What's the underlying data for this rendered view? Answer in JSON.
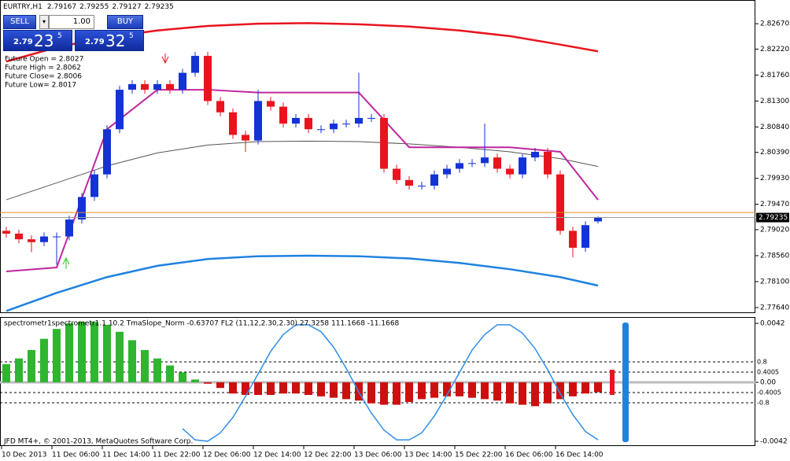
{
  "chart_data": [
    {
      "type": "candlestick",
      "title": "EURTRY,H1",
      "categories": [
        "10 Dec 2013",
        null,
        null,
        null,
        "11 Dec 06:00",
        null,
        null,
        null,
        "11 Dec 14:00",
        null,
        null,
        null,
        "11 Dec 22:00",
        null,
        null,
        null,
        "12 Dec 06:00",
        null,
        null,
        null,
        "12 Dec 14:00",
        null,
        null,
        null,
        "12 Dec 22:00",
        null,
        null,
        null,
        "13 Dec 06:00",
        null,
        null,
        null,
        "13 Dec 14:00",
        null,
        null,
        null,
        "15 Dec 22:00",
        null,
        null,
        null,
        "16 Dec 06:00",
        null,
        null,
        null,
        "16 Dec 14:00",
        null,
        null,
        null
      ],
      "open": [
        2.79,
        2.7895,
        2.7885,
        2.788,
        2.789,
        2.789,
        2.792,
        2.796,
        2.8,
        2.808,
        2.815,
        2.816,
        2.815,
        2.816,
        2.815,
        2.818,
        2.821,
        2.813,
        2.811,
        2.807,
        2.806,
        2.813,
        2.812,
        2.809,
        2.81,
        2.808,
        2.808,
        2.809,
        2.809,
        2.81,
        2.81,
        2.801,
        2.799,
        2.798,
        2.798,
        2.8,
        2.801,
        2.802,
        2.802,
        2.803,
        2.801,
        2.8,
        2.803,
        2.804,
        2.8,
        2.79,
        2.787,
        2.79167
      ],
      "high": [
        2.7907,
        2.7902,
        2.7892,
        2.7897,
        2.7897,
        2.7927,
        2.7967,
        2.8007,
        2.8087,
        2.8157,
        2.8167,
        2.8167,
        2.8167,
        2.8167,
        2.8187,
        2.8217,
        2.8217,
        2.8137,
        2.8117,
        2.8077,
        2.815,
        2.8137,
        2.8127,
        2.8107,
        2.8107,
        2.8087,
        2.8097,
        2.8097,
        2.818,
        2.8107,
        2.8107,
        2.8017,
        2.7997,
        2.7987,
        2.8007,
        2.8017,
        2.8027,
        2.8027,
        2.809,
        2.8037,
        2.8017,
        2.8037,
        2.8047,
        2.8047,
        2.8007,
        2.7907,
        2.7917,
        2.79255
      ],
      "low": [
        2.7888,
        2.7878,
        2.7862,
        2.7873,
        2.784,
        2.7883,
        2.7913,
        2.7953,
        2.7993,
        2.8073,
        2.8143,
        2.8143,
        2.8143,
        2.8143,
        2.8143,
        2.8173,
        2.8123,
        2.8103,
        2.8063,
        2.804,
        2.8053,
        2.8113,
        2.8083,
        2.8083,
        2.8073,
        2.8073,
        2.8073,
        2.8083,
        2.8083,
        2.8093,
        2.8003,
        2.7983,
        2.7973,
        2.7973,
        2.7973,
        2.7993,
        2.8003,
        2.8013,
        2.8013,
        2.8003,
        2.7993,
        2.7993,
        2.8023,
        2.7993,
        2.7893,
        2.7853,
        2.7863,
        2.79127
      ],
      "close": [
        2.7895,
        2.7885,
        2.788,
        2.789,
        2.789,
        2.792,
        2.796,
        2.8,
        2.808,
        2.815,
        2.816,
        2.815,
        2.816,
        2.815,
        2.818,
        2.821,
        2.813,
        2.811,
        2.807,
        2.806,
        2.813,
        2.812,
        2.809,
        2.81,
        2.808,
        2.808,
        2.809,
        2.809,
        2.81,
        2.81,
        2.801,
        2.799,
        2.798,
        2.798,
        2.8,
        2.801,
        2.802,
        2.802,
        2.803,
        2.801,
        2.8,
        2.803,
        2.804,
        2.8,
        2.79,
        2.787,
        2.791,
        2.79235
      ],
      "up_color": "#1433d6",
      "down_color": "#e8141e",
      "ylim": [
        2.77542,
        2.8309
      ],
      "yticks": [
        {
          "value": 2.8267,
          "label": "2.82670"
        },
        {
          "value": 2.8222,
          "label": "2.82220"
        },
        {
          "value": 2.8176,
          "label": "2.81760"
        },
        {
          "value": 2.813,
          "label": "2.81300"
        },
        {
          "value": 2.8084,
          "label": "2.80840"
        },
        {
          "value": 2.8039,
          "label": "2.80390"
        },
        {
          "value": 2.7993,
          "label": "2.79930"
        },
        {
          "value": 2.7947,
          "label": "2.79470"
        },
        {
          "value": 2.7902,
          "label": "2.79020"
        },
        {
          "value": 2.7856,
          "label": "2.78560"
        },
        {
          "value": 2.781,
          "label": "2.78100"
        },
        {
          "value": 2.7764,
          "label": "2.77640"
        }
      ],
      "line_x": [
        0,
        4,
        8,
        12,
        16,
        20,
        24,
        28,
        32,
        36,
        40,
        44,
        47
      ],
      "lines": [
        {
          "color": "#e8141e",
          "width": 2.5,
          "values": [
            2.82,
            2.8225,
            2.8243,
            2.8255,
            2.8263,
            2.8267,
            2.8268,
            2.8266,
            2.8262,
            2.8255,
            2.8245,
            2.823,
            2.8218
          ]
        },
        {
          "color": "#1e82e0",
          "width": 2.5,
          "values": [
            2.7758,
            2.779,
            2.7818,
            2.7838,
            2.785,
            2.7855,
            2.7856,
            2.7855,
            2.7851,
            2.7843,
            2.7832,
            2.7818,
            2.7803
          ]
        },
        {
          "color": "#555555",
          "width": 1,
          "values": [
            2.7955,
            2.7985,
            2.8015,
            2.8038,
            2.8052,
            2.8058,
            2.8059,
            2.8058,
            2.8054,
            2.8048,
            2.804,
            2.8028,
            2.8014
          ]
        },
        {
          "color": "#c0269e",
          "width": 2,
          "values": [
            2.7828,
            2.7835,
            2.808,
            2.815,
            2.815,
            2.8145,
            2.8145,
            2.8145,
            2.8048,
            2.8048,
            2.8048,
            2.804,
            2.7955
          ]
        }
      ],
      "ask": 2.79325,
      "ask_color": "#e08a1e",
      "annotations": [
        "Future Open = 2.8027",
        "Future High = 2.8062",
        "Future Close= 2.8006",
        "Future Low= 2.8017"
      ]
    },
    {
      "type": "bar",
      "title": "spectrometr1spectrometr1.1 10.2 TmaSlope_Norm -0.63707  FL2 (11,12,2.30,2.30) 27.3258 111.1668 -11.1668",
      "values": [
        0.0013,
        0.0017,
        0.0023,
        0.0031,
        0.0038,
        0.0042,
        0.0043,
        0.0043,
        0.0041,
        0.0036,
        0.003,
        0.0023,
        0.0017,
        0.0012,
        0.0007,
        0.0002,
        -0.0001,
        -0.0004,
        -0.0008,
        -0.0009,
        -0.0009,
        -0.0009,
        -0.0008,
        -0.0008,
        -0.0009,
        -0.001,
        -0.0011,
        -0.0012,
        -0.0013,
        -0.0015,
        -0.0016,
        -0.0016,
        -0.0014,
        -0.0012,
        -0.0011,
        -0.001,
        -0.001,
        -0.0011,
        -0.0012,
        -0.0013,
        -0.0015,
        -0.0016,
        -0.0017,
        -0.0015,
        -0.0012,
        -0.001,
        -0.0008,
        -0.0007
      ],
      "positive_color": "#2fb52f",
      "negative_color": "#cc1010",
      "wave": {
        "color": "#2f8ee8",
        "values": [
          null,
          null,
          null,
          null,
          null,
          null,
          null,
          null,
          null,
          null,
          null,
          null,
          null,
          null,
          -0.0033,
          -0.0041,
          -0.0042,
          -0.0036,
          -0.0025,
          -0.001,
          0.0006,
          0.0022,
          0.0034,
          0.0041,
          0.0041,
          0.0036,
          0.0025,
          0.001,
          -0.0007,
          -0.0022,
          -0.0034,
          -0.0041,
          -0.0041,
          -0.0036,
          -0.0024,
          -0.0009,
          0.0007,
          0.0023,
          0.0034,
          0.0041,
          0.0041,
          0.0035,
          0.0024,
          0.0009,
          -0.0008,
          -0.0023,
          -0.0035,
          -0.0041
        ]
      },
      "ylim": [
        -0.00454,
        0.00465
      ],
      "yticks": [
        0.0042,
        {
          "value": 0,
          "label": "0.00"
        },
        -0.0042
      ],
      "y2lim": [
        -2.49,
        2.55
      ],
      "y2ticks": [
        0.8,
        0.4005,
        -0.4005,
        -0.8
      ]
    }
  ],
  "trade_panel": {
    "sell": "SELL",
    "buy": "BUY",
    "lot": "1.00",
    "bid_big": "2.79",
    "bid_pips": "23",
    "bid_point": "5",
    "ask_big": "2.79",
    "ask_pips": "32",
    "ask_point": "5"
  },
  "footer": "JFD MT4+, © 2001-2013, MetaQuotes Software Corp."
}
